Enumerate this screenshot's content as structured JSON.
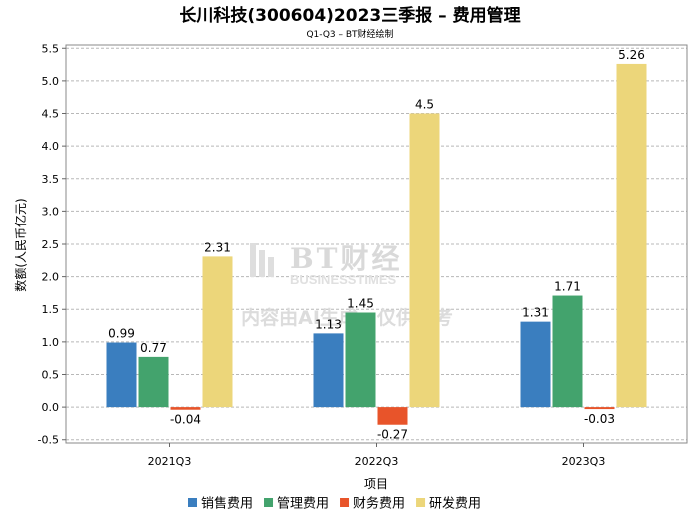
{
  "chart_data": {
    "type": "bar",
    "title": "长川科技(300604)2023三季报 – 费用管理",
    "subtitle": "Q1-Q3 – BT财经绘制",
    "xlabel": "项目",
    "ylabel": "数额(人民币亿元)",
    "categories": [
      "2021Q3",
      "2022Q3",
      "2023Q3"
    ],
    "ylim": [
      -0.55,
      5.55
    ],
    "yticks": [
      "-0.5",
      "0.0",
      "0.5",
      "1.0",
      "1.5",
      "2.0",
      "2.5",
      "3.0",
      "3.5",
      "4.0",
      "4.5",
      "5.0",
      "5.5"
    ],
    "grid": true,
    "legend_position": "bottom",
    "series": [
      {
        "name": "销售费用",
        "color": "#3a7ebf",
        "values": [
          0.99,
          1.13,
          1.31
        ],
        "labels": [
          "0.99",
          "1.13",
          "1.31"
        ]
      },
      {
        "name": "管理费用",
        "color": "#43a36d",
        "values": [
          0.77,
          1.45,
          1.71
        ],
        "labels": [
          "0.77",
          "1.45",
          "1.71"
        ]
      },
      {
        "name": "财务费用",
        "color": "#e8542a",
        "values": [
          -0.04,
          -0.27,
          -0.03
        ],
        "labels": [
          "-0.04",
          "-0.27",
          "-0.03"
        ]
      },
      {
        "name": "研发费用",
        "color": "#ecd67a",
        "values": [
          2.31,
          4.5,
          5.26
        ],
        "labels": [
          "2.31",
          "4.5",
          "5.26"
        ]
      }
    ]
  },
  "watermark": {
    "brand": "BT财经",
    "brand_en": "BUSINESSTIMES",
    "disclaimer": "内容由AI生成，仅供参考"
  }
}
